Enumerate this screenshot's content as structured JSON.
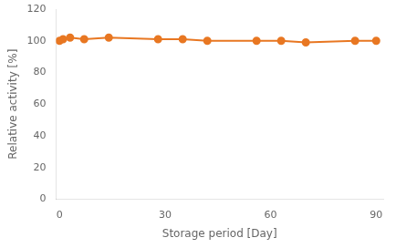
{
  "chart_data": {
    "type": "line",
    "x": [
      0,
      1,
      3,
      7,
      14,
      28,
      35,
      42,
      56,
      63,
      70,
      84,
      90
    ],
    "values": [
      100,
      101,
      102,
      101,
      102,
      101,
      101,
      100,
      100,
      100,
      99,
      100,
      100
    ],
    "color": "#E87722",
    "marker": "circle",
    "xlabel": "Storage period [Day]",
    "ylabel": "Relative activity [%]",
    "xlim": [
      -1,
      92
    ],
    "ylim": [
      0,
      120
    ],
    "xticks": [
      0,
      30,
      60,
      90
    ],
    "yticks": [
      0,
      20,
      40,
      60,
      80,
      100,
      120
    ],
    "grid": false
  }
}
